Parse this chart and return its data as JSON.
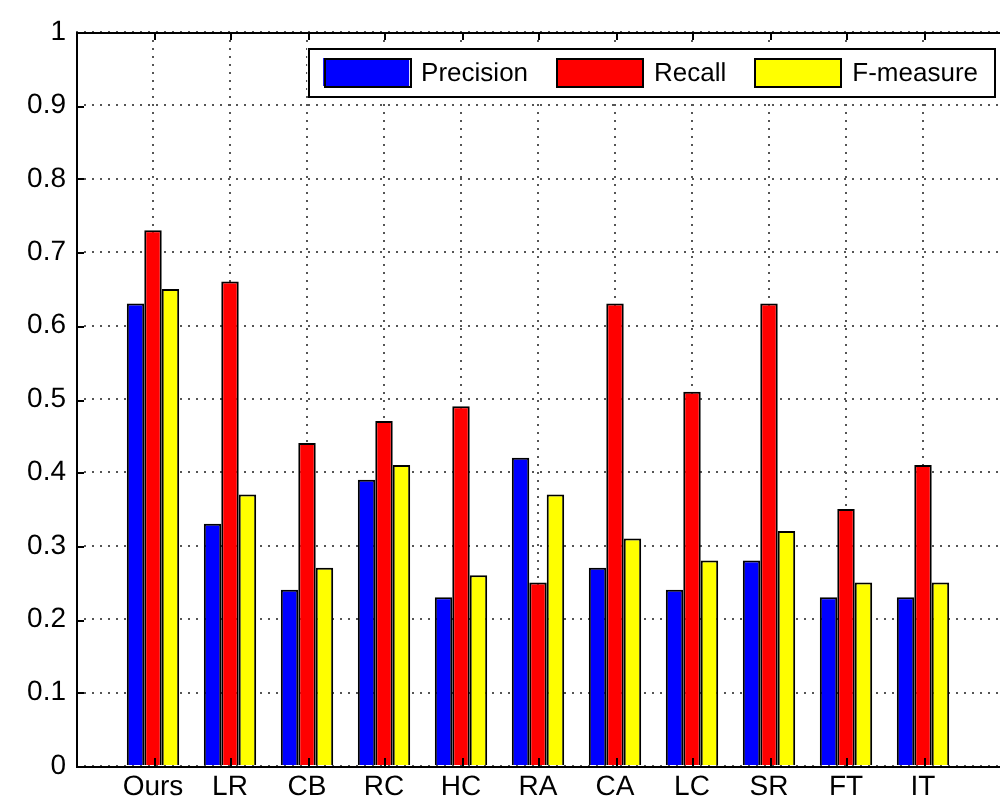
{
  "chart_data": {
    "type": "bar",
    "categories": [
      "Ours",
      "LR",
      "CB",
      "RC",
      "HC",
      "RA",
      "CA",
      "LC",
      "SR",
      "FT",
      "IT"
    ],
    "series": [
      {
        "name": "Precision",
        "color": "#0000ff",
        "values": [
          0.63,
          0.33,
          0.24,
          0.39,
          0.23,
          0.42,
          0.27,
          0.24,
          0.28,
          0.23,
          0.23
        ]
      },
      {
        "name": "Recall",
        "color": "#ff0000",
        "values": [
          0.73,
          0.66,
          0.44,
          0.47,
          0.49,
          0.25,
          0.63,
          0.51,
          0.63,
          0.35,
          0.41
        ]
      },
      {
        "name": "F-measure",
        "color": "#ffff00",
        "values": [
          0.65,
          0.37,
          0.27,
          0.41,
          0.26,
          0.37,
          0.31,
          0.28,
          0.32,
          0.25,
          0.25
        ]
      }
    ],
    "ylim": [
      0,
      1
    ],
    "yticks": [
      0,
      0.1,
      0.2,
      0.3,
      0.4,
      0.5,
      0.6,
      0.7,
      0.8,
      0.9,
      1
    ],
    "grid": true,
    "legend": "top right"
  }
}
